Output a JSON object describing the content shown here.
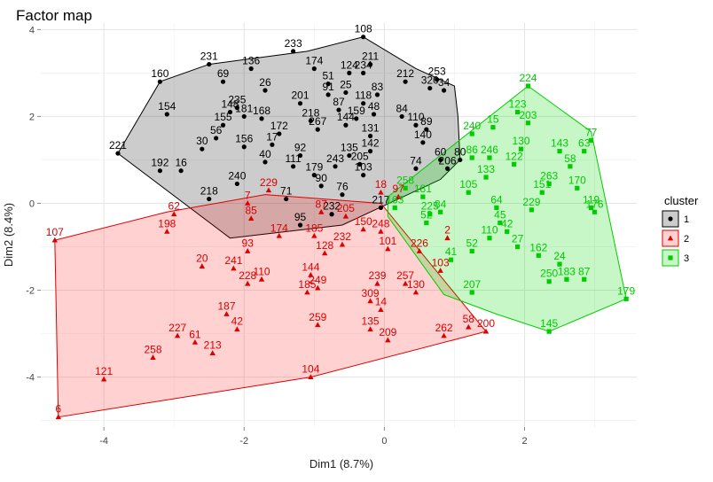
{
  "chart_data": {
    "type": "scatter",
    "title": "Factor map",
    "xlabel": "Dim1 (8.7%)",
    "ylabel": "Dim2 (8.4%)",
    "xlim": [
      -4.9,
      3.6
    ],
    "ylim": [
      -5.15,
      4.15
    ],
    "xticks": [
      -4,
      -2,
      0,
      2
    ],
    "yticks": [
      4,
      2,
      0,
      -2,
      -4
    ],
    "grid": true,
    "legend": {
      "title": "cluster",
      "position": "right"
    },
    "series": [
      {
        "name": "1",
        "color": "#000000",
        "fill": "rgba(0,0,0,0.2)",
        "marker": "circle",
        "hull": [
          [
            -0.3,
            3.83
          ],
          [
            0.45,
            3.1
          ],
          [
            1,
            2.7
          ],
          [
            1.05,
            2.0
          ],
          [
            1.08,
            1.0
          ],
          [
            0.8,
            0.55
          ],
          [
            -0.6,
            -0.5
          ],
          [
            -2.2,
            -0.8
          ],
          [
            -3.8,
            1.15
          ],
          [
            -3.2,
            2.8
          ],
          [
            -2.5,
            3.2
          ],
          [
            -1.1,
            3.5
          ]
        ],
        "points": [
          {
            "label": "108",
            "x": -0.3,
            "y": 3.83
          },
          {
            "label": "233",
            "x": -1.3,
            "y": 3.5
          },
          {
            "label": "231",
            "x": -2.5,
            "y": 3.2
          },
          {
            "label": "160",
            "x": -3.2,
            "y": 2.8
          },
          {
            "label": "136",
            "x": -1.9,
            "y": 3.1
          },
          {
            "label": "174",
            "x": -1.0,
            "y": 3.1
          },
          {
            "label": "211",
            "x": -0.2,
            "y": 3.2
          },
          {
            "label": "124",
            "x": -0.5,
            "y": 3.0
          },
          {
            "label": "234",
            "x": -0.3,
            "y": 3.0
          },
          {
            "label": "253",
            "x": 0.75,
            "y": 2.85
          },
          {
            "label": "69",
            "x": -2.3,
            "y": 2.8
          },
          {
            "label": "26",
            "x": -1.7,
            "y": 2.6
          },
          {
            "label": "51",
            "x": -0.8,
            "y": 2.75
          },
          {
            "label": "212",
            "x": 0.3,
            "y": 2.8
          },
          {
            "label": "235",
            "x": -2.1,
            "y": 2.2
          },
          {
            "label": "148",
            "x": -2.2,
            "y": 2.1
          },
          {
            "label": "154",
            "x": -3.1,
            "y": 2.05
          },
          {
            "label": "221",
            "x": -3.8,
            "y": 1.15
          },
          {
            "label": "83",
            "x": -0.1,
            "y": 2.5
          },
          {
            "label": "84",
            "x": 0.25,
            "y": 2.0
          },
          {
            "label": "155",
            "x": -2.3,
            "y": 1.8
          },
          {
            "label": "56",
            "x": -2.4,
            "y": 1.5
          },
          {
            "label": "30",
            "x": -2.6,
            "y": 1.25
          },
          {
            "label": "156",
            "x": -2.0,
            "y": 1.3
          },
          {
            "label": "40",
            "x": -1.7,
            "y": 0.95
          },
          {
            "label": "192",
            "x": -3.2,
            "y": 0.75
          },
          {
            "label": "16",
            "x": -2.9,
            "y": 0.75
          },
          {
            "label": "240",
            "x": -2.1,
            "y": 0.45
          },
          {
            "label": "218",
            "x": -2.5,
            "y": 0.1
          },
          {
            "label": "71",
            "x": -1.4,
            "y": 0.1
          },
          {
            "label": "95",
            "x": -1.2,
            "y": -0.5
          },
          {
            "label": "76",
            "x": -0.6,
            "y": 0.2
          },
          {
            "label": "92",
            "x": -1.2,
            "y": 1.1
          },
          {
            "label": "267",
            "x": -0.95,
            "y": 1.7
          },
          {
            "label": "218",
            "x": -1.05,
            "y": 1.9
          },
          {
            "label": "201",
            "x": -1.2,
            "y": 2.3
          },
          {
            "label": "91",
            "x": -0.8,
            "y": 2.5
          },
          {
            "label": "25",
            "x": -0.55,
            "y": 2.55
          },
          {
            "label": "87",
            "x": -0.65,
            "y": 2.15
          },
          {
            "label": "159",
            "x": -0.4,
            "y": 1.95
          },
          {
            "label": "118",
            "x": -0.3,
            "y": 2.3
          },
          {
            "label": "48",
            "x": -0.15,
            "y": 2.05
          },
          {
            "label": "131",
            "x": -0.2,
            "y": 1.55
          },
          {
            "label": "142",
            "x": -0.2,
            "y": 1.2
          },
          {
            "label": "110",
            "x": 0.45,
            "y": 1.8
          },
          {
            "label": "89",
            "x": 0.6,
            "y": 1.7
          },
          {
            "label": "140",
            "x": 0.55,
            "y": 1.4
          },
          {
            "label": "60",
            "x": 0.8,
            "y": 1.0
          },
          {
            "label": "80",
            "x": 1.08,
            "y": 1.0
          },
          {
            "label": "206",
            "x": 0.9,
            "y": 0.8
          },
          {
            "label": "74",
            "x": 0.45,
            "y": 0.8
          },
          {
            "label": "103",
            "x": -0.3,
            "y": 0.65
          },
          {
            "label": "243",
            "x": -0.7,
            "y": 0.85
          },
          {
            "label": "172",
            "x": -1.5,
            "y": 1.6
          },
          {
            "label": "17",
            "x": -1.6,
            "y": 1.35
          },
          {
            "label": "111",
            "x": -1.3,
            "y": 0.85
          },
          {
            "label": "179",
            "x": -1.0,
            "y": 0.65
          },
          {
            "label": "90",
            "x": -0.9,
            "y": 0.4
          },
          {
            "label": "232",
            "x": -0.75,
            "y": -0.25
          },
          {
            "label": "217",
            "x": -0.05,
            "y": -0.1
          },
          {
            "label": "320",
            "x": 0.65,
            "y": 2.65
          },
          {
            "label": "34",
            "x": 0.85,
            "y": 2.6
          },
          {
            "label": "135",
            "x": -0.5,
            "y": 1.1
          },
          {
            "label": "205",
            "x": -0.35,
            "y": 0.9
          },
          {
            "label": "181",
            "x": -2.0,
            "y": 2.0
          },
          {
            "label": "168",
            "x": -1.75,
            "y": 1.95
          },
          {
            "label": "144",
            "x": -0.55,
            "y": 1.8
          }
        ]
      },
      {
        "name": "2",
        "color": "#dd0000",
        "fill": "rgba(255,0,0,0.18)",
        "marker": "triangle",
        "hull": [
          [
            -4.7,
            -0.85
          ],
          [
            -4.65,
            -4.92
          ],
          [
            -1.05,
            -4.0
          ],
          [
            1.45,
            -2.95
          ],
          [
            -0.05,
            0.0
          ],
          [
            -1.7,
            0.2
          ],
          [
            -3.1,
            -0.2
          ]
        ],
        "points": [
          {
            "label": "107",
            "x": -4.7,
            "y": -0.85
          },
          {
            "label": "6",
            "x": -4.65,
            "y": -4.92
          },
          {
            "label": "121",
            "x": -4.0,
            "y": -4.05
          },
          {
            "label": "258",
            "x": -3.3,
            "y": -3.55
          },
          {
            "label": "227",
            "x": -2.95,
            "y": -3.05
          },
          {
            "label": "61",
            "x": -2.7,
            "y": -3.2
          },
          {
            "label": "213",
            "x": -2.45,
            "y": -3.45
          },
          {
            "label": "187",
            "x": -2.25,
            "y": -2.55
          },
          {
            "label": "42",
            "x": -2.1,
            "y": -2.9
          },
          {
            "label": "20",
            "x": -2.6,
            "y": -1.45
          },
          {
            "label": "241",
            "x": -2.15,
            "y": -1.5
          },
          {
            "label": "228",
            "x": -1.95,
            "y": -1.85
          },
          {
            "label": "110",
            "x": -1.75,
            "y": -1.75
          },
          {
            "label": "93",
            "x": -1.95,
            "y": -1.1
          },
          {
            "label": "85",
            "x": -1.9,
            "y": -0.35
          },
          {
            "label": "7",
            "x": -1.95,
            "y": 0.0
          },
          {
            "label": "62",
            "x": -3.0,
            "y": -0.25
          },
          {
            "label": "198",
            "x": -3.1,
            "y": -0.65
          },
          {
            "label": "229",
            "x": -1.65,
            "y": 0.3
          },
          {
            "label": "249",
            "x": -0.95,
            "y": -1.95
          },
          {
            "label": "259",
            "x": -0.95,
            "y": -2.8
          },
          {
            "label": "104",
            "x": -1.05,
            "y": -4.0
          },
          {
            "label": "185",
            "x": -1.1,
            "y": -2.05
          },
          {
            "label": "144",
            "x": -1.05,
            "y": -1.65
          },
          {
            "label": "128",
            "x": -0.85,
            "y": -1.15
          },
          {
            "label": "248",
            "x": -0.05,
            "y": -0.65
          },
          {
            "label": "101",
            "x": 0.05,
            "y": -1.05
          },
          {
            "label": "226",
            "x": 0.5,
            "y": -1.1
          },
          {
            "label": "130",
            "x": 0.45,
            "y": -2.05
          },
          {
            "label": "239",
            "x": -0.1,
            "y": -1.85
          },
          {
            "label": "257",
            "x": 0.3,
            "y": -1.85
          },
          {
            "label": "14",
            "x": -0.05,
            "y": -2.45
          },
          {
            "label": "135",
            "x": -0.2,
            "y": -2.9
          },
          {
            "label": "209",
            "x": 0.05,
            "y": -3.15
          },
          {
            "label": "262",
            "x": 0.85,
            "y": -3.05
          },
          {
            "label": "58",
            "x": 1.2,
            "y": -2.85
          },
          {
            "label": "200",
            "x": 1.45,
            "y": -2.95
          },
          {
            "label": "2",
            "x": 0.9,
            "y": -0.8
          },
          {
            "label": "103",
            "x": 0.8,
            "y": -1.55
          },
          {
            "label": "150",
            "x": -0.3,
            "y": -0.6
          },
          {
            "label": "205",
            "x": -0.55,
            "y": -0.3
          },
          {
            "label": "185",
            "x": -1.0,
            "y": -0.75
          },
          {
            "label": "174",
            "x": -1.5,
            "y": -0.75
          },
          {
            "label": "232",
            "x": -0.6,
            "y": -0.95
          },
          {
            "label": "87",
            "x": -0.9,
            "y": -0.2
          },
          {
            "label": "18",
            "x": -0.05,
            "y": 0.25
          },
          {
            "label": "97",
            "x": 0.2,
            "y": 0.15
          },
          {
            "label": "309",
            "x": -0.2,
            "y": -2.25
          }
        ]
      },
      {
        "name": "3",
        "color": "#00cc00",
        "fill": "rgba(0,220,0,0.22)",
        "marker": "square",
        "hull": [
          [
            2.05,
            2.7
          ],
          [
            0.05,
            0.15
          ],
          [
            0.05,
            -0.3
          ],
          [
            0.85,
            -2.1
          ],
          [
            1.6,
            -2.55
          ],
          [
            2.35,
            -2.95
          ],
          [
            3.45,
            -2.2
          ],
          [
            2.95,
            1.65
          ]
        ],
        "points": [
          {
            "label": "224",
            "x": 2.05,
            "y": 2.7
          },
          {
            "label": "123",
            "x": 1.9,
            "y": 2.1
          },
          {
            "label": "203",
            "x": 2.05,
            "y": 1.85
          },
          {
            "label": "15",
            "x": 1.55,
            "y": 1.75
          },
          {
            "label": "143",
            "x": 2.5,
            "y": 1.2
          },
          {
            "label": "77",
            "x": 2.95,
            "y": 1.45
          },
          {
            "label": "63",
            "x": 2.85,
            "y": 1.2
          },
          {
            "label": "179",
            "x": 3.45,
            "y": -2.2
          },
          {
            "label": "145",
            "x": 2.35,
            "y": -2.95
          },
          {
            "label": "207",
            "x": 1.25,
            "y": -2.05
          },
          {
            "label": "250",
            "x": 2.35,
            "y": -1.8
          },
          {
            "label": "183",
            "x": 2.6,
            "y": -1.75
          },
          {
            "label": "87",
            "x": 2.85,
            "y": -1.75
          },
          {
            "label": "24",
            "x": 2.5,
            "y": -1.4
          },
          {
            "label": "52",
            "x": 1.25,
            "y": -1.1
          },
          {
            "label": "45",
            "x": 1.65,
            "y": -0.45
          },
          {
            "label": "110",
            "x": 1.5,
            "y": -0.8
          },
          {
            "label": "105",
            "x": 1.2,
            "y": 0.25
          },
          {
            "label": "64",
            "x": 1.6,
            "y": -0.1
          },
          {
            "label": "151",
            "x": 2.25,
            "y": 0.25
          },
          {
            "label": "170",
            "x": 2.75,
            "y": 0.35
          },
          {
            "label": "176",
            "x": 3.0,
            "y": -0.2
          },
          {
            "label": "58",
            "x": 2.65,
            "y": 0.85
          },
          {
            "label": "240",
            "x": 1.25,
            "y": 1.6
          },
          {
            "label": "246",
            "x": 1.5,
            "y": 1.05
          },
          {
            "label": "86",
            "x": 1.25,
            "y": 1.05
          },
          {
            "label": "41",
            "x": 0.95,
            "y": -1.3
          },
          {
            "label": "52",
            "x": 0.6,
            "y": -0.45
          },
          {
            "label": "225",
            "x": 0.65,
            "y": -0.25
          },
          {
            "label": "181",
            "x": 0.55,
            "y": 0.15
          },
          {
            "label": "258",
            "x": 0.3,
            "y": 0.35
          },
          {
            "label": "163",
            "x": 0.15,
            "y": -0.1
          },
          {
            "label": "122",
            "x": 1.85,
            "y": 0.9
          },
          {
            "label": "130",
            "x": 1.95,
            "y": 1.25
          },
          {
            "label": "84",
            "x": 0.8,
            "y": -0.2
          },
          {
            "label": "133",
            "x": 1.45,
            "y": 0.6
          },
          {
            "label": "263",
            "x": 2.35,
            "y": 0.45
          },
          {
            "label": "229",
            "x": 2.1,
            "y": -0.15
          },
          {
            "label": "162",
            "x": 2.2,
            "y": -1.2
          },
          {
            "label": "27",
            "x": 1.9,
            "y": -1.0
          },
          {
            "label": "119",
            "x": 2.95,
            "y": -0.1
          },
          {
            "label": "42",
            "x": 1.75,
            "y": -0.65
          }
        ]
      }
    ]
  }
}
